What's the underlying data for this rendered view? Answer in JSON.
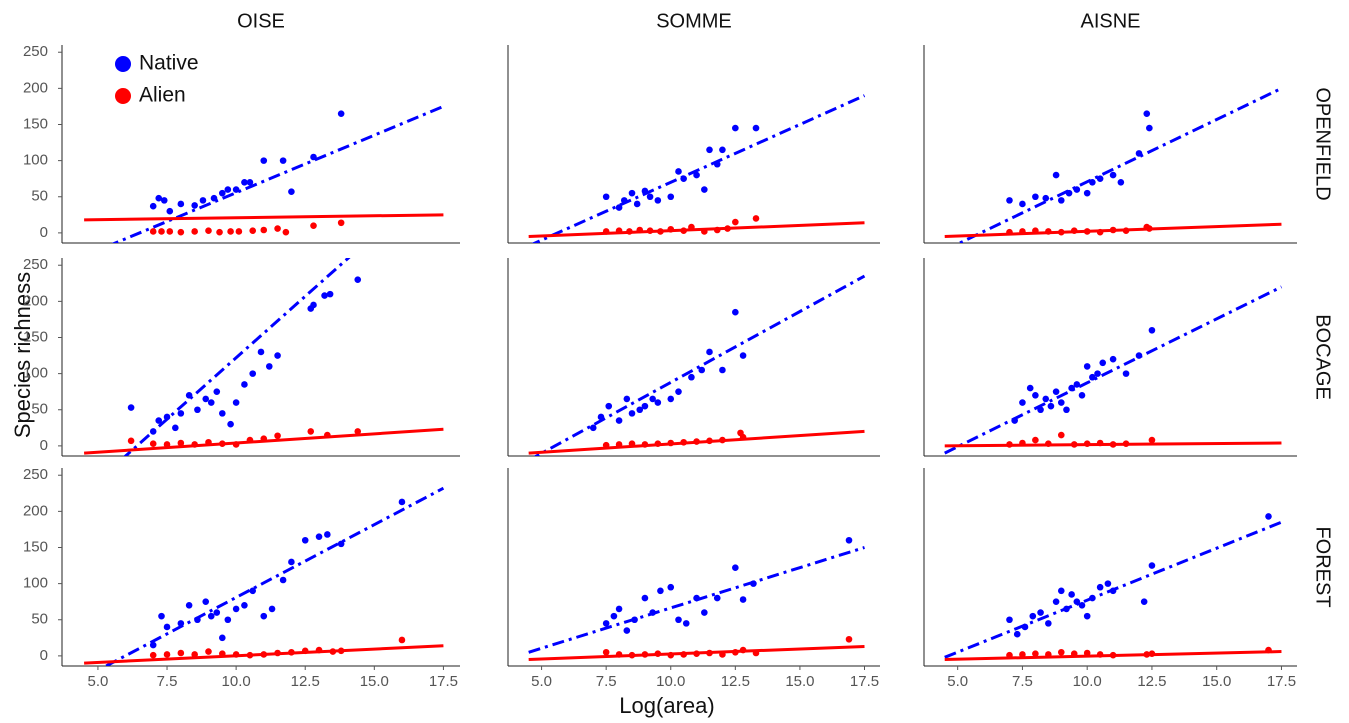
{
  "figure": {
    "x_label": "Log(area)",
    "y_label": "Species richness",
    "columns": [
      "OISE",
      "SOMME",
      "AISNE"
    ],
    "rows": [
      "OPENFIELD",
      "BOCAGE",
      "FOREST"
    ]
  },
  "chart_data": [
    {
      "type": "scatter",
      "xlim": [
        3.7,
        18.1
      ],
      "ylim": [
        -14,
        260
      ],
      "yticks": [
        0,
        50,
        100,
        150,
        200,
        250
      ],
      "series": [
        {
          "name": "Native",
          "color": "#0000ff",
          "line_style": "dashdot",
          "x": [
            7,
            7.2,
            7.4,
            7.6,
            8,
            8.5,
            8.8,
            9.2,
            9.5,
            9.7,
            10,
            10.3,
            10.5,
            11,
            11.7,
            12,
            12.8,
            13.8
          ],
          "values": [
            37,
            48,
            45,
            30,
            40,
            38,
            45,
            48,
            55,
            60,
            60,
            70,
            70,
            100,
            100,
            57,
            105,
            165
          ],
          "trend": {
            "x": [
              4.5,
              17.5
            ],
            "y": [
              -32,
              175
            ]
          }
        },
        {
          "name": "Alien",
          "color": "#ff0000",
          "line_style": "solid",
          "x": [
            7,
            7.3,
            7.6,
            8,
            8.5,
            9,
            9.4,
            9.8,
            10.1,
            10.6,
            11,
            11.5,
            11.8,
            12.8,
            13.8
          ],
          "values": [
            2,
            2,
            2,
            1,
            2,
            3,
            1,
            2,
            2,
            3,
            4,
            6,
            1,
            10,
            14
          ],
          "trend": {
            "x": [
              4.5,
              17.5
            ],
            "y": [
              18,
              25
            ]
          }
        }
      ]
    },
    {
      "type": "scatter",
      "xlim": [
        3.7,
        18.1
      ],
      "ylim": [
        -14,
        260
      ],
      "series": [
        {
          "color": "#0000ff",
          "line_style": "dashdot",
          "x": [
            7.5,
            8,
            8.2,
            8.5,
            8.7,
            9,
            9.2,
            9.5,
            10,
            10.3,
            10.5,
            11,
            11.3,
            11.5,
            11.8,
            12,
            12.5,
            13.3
          ],
          "values": [
            50,
            35,
            45,
            55,
            40,
            58,
            50,
            45,
            50,
            85,
            75,
            80,
            60,
            115,
            95,
            115,
            145,
            145
          ],
          "trend": {
            "x": [
              4.5,
              17.5
            ],
            "y": [
              -18,
              190
            ]
          }
        },
        {
          "color": "#ff0000",
          "line_style": "solid",
          "x": [
            7.5,
            8,
            8.4,
            8.8,
            9.2,
            9.6,
            10,
            10.5,
            10.8,
            11.3,
            11.8,
            12.2,
            12.5,
            13.3
          ],
          "values": [
            2,
            3,
            2,
            4,
            3,
            2,
            5,
            3,
            8,
            2,
            4,
            6,
            15,
            20
          ],
          "trend": {
            "x": [
              4.5,
              17.5
            ],
            "y": [
              -5,
              14
            ]
          }
        }
      ]
    },
    {
      "type": "scatter",
      "xlim": [
        3.7,
        18.1
      ],
      "ylim": [
        -14,
        260
      ],
      "series": [
        {
          "color": "#0000ff",
          "line_style": "dashdot",
          "x": [
            7,
            7.5,
            8,
            8.4,
            8.8,
            9,
            9.3,
            9.6,
            10,
            10.2,
            10.5,
            11,
            11.3,
            12,
            12.3,
            12.4
          ],
          "values": [
            45,
            40,
            50,
            48,
            80,
            45,
            55,
            60,
            55,
            70,
            75,
            80,
            70,
            110,
            165,
            145
          ],
          "trend": {
            "x": [
              4.5,
              17.5
            ],
            "y": [
              -24,
              200
            ]
          }
        },
        {
          "color": "#ff0000",
          "line_style": "solid",
          "x": [
            7,
            7.5,
            8,
            8.5,
            9,
            9.5,
            10,
            10.5,
            11,
            11.5,
            12.3,
            12.4
          ],
          "values": [
            1,
            2,
            3,
            2,
            1,
            3,
            2,
            1,
            4,
            3,
            8,
            6
          ],
          "trend": {
            "x": [
              4.5,
              17.5
            ],
            "y": [
              -5,
              12
            ]
          }
        }
      ]
    },
    {
      "type": "scatter",
      "xlim": [
        3.7,
        18.1
      ],
      "ylim": [
        -14,
        260
      ],
      "yticks": [
        0,
        50,
        100,
        150,
        200,
        250
      ],
      "series": [
        {
          "color": "#0000ff",
          "line_style": "dashdot",
          "x": [
            6.2,
            7,
            7.2,
            7.5,
            7.8,
            8,
            8.3,
            8.6,
            8.9,
            9.1,
            9.3,
            9.5,
            9.8,
            10,
            10.3,
            10.6,
            10.9,
            11.2,
            11.5,
            12.7,
            12.8,
            13.2,
            13.4,
            14.4
          ],
          "values": [
            53,
            20,
            35,
            40,
            25,
            45,
            70,
            50,
            65,
            60,
            75,
            45,
            30,
            60,
            85,
            100,
            130,
            110,
            125,
            190,
            195,
            208,
            210,
            230
          ],
          "trend": {
            "x": [
              4.5,
              17.5
            ],
            "y": [
              -65,
              377
            ]
          }
        },
        {
          "color": "#ff0000",
          "line_style": "solid",
          "x": [
            6.2,
            7,
            7.5,
            8,
            8.5,
            9,
            9.5,
            10,
            10.5,
            11,
            11.5,
            12.7,
            13.3,
            14.4
          ],
          "values": [
            7,
            3,
            2,
            4,
            2,
            5,
            3,
            2,
            8,
            10,
            14,
            20,
            15,
            20
          ],
          "trend": {
            "x": [
              4.5,
              17.5
            ],
            "y": [
              -10,
              23
            ]
          }
        }
      ]
    },
    {
      "type": "scatter",
      "xlim": [
        3.7,
        18.1
      ],
      "ylim": [
        -14,
        260
      ],
      "series": [
        {
          "color": "#0000ff",
          "line_style": "dashdot",
          "x": [
            7,
            7.3,
            7.6,
            8,
            8.3,
            8.5,
            8.8,
            9,
            9.3,
            9.5,
            10,
            10.3,
            10.8,
            11.2,
            11.5,
            12,
            12.5,
            12.8
          ],
          "values": [
            25,
            40,
            55,
            35,
            65,
            45,
            50,
            55,
            65,
            60,
            65,
            75,
            95,
            105,
            130,
            105,
            185,
            125
          ],
          "trend": {
            "x": [
              4.5,
              17.5
            ],
            "y": [
              -20,
              235
            ]
          }
        },
        {
          "color": "#ff0000",
          "line_style": "solid",
          "x": [
            7.5,
            8,
            8.5,
            9,
            9.5,
            10,
            10.5,
            11,
            11.5,
            12,
            12.7,
            12.8
          ],
          "values": [
            1,
            2,
            3,
            2,
            3,
            4,
            5,
            6,
            7,
            8,
            18,
            12
          ],
          "trend": {
            "x": [
              4.5,
              17.5
            ],
            "y": [
              -10,
              20
            ]
          }
        }
      ]
    },
    {
      "type": "scatter",
      "xlim": [
        3.7,
        18.1
      ],
      "ylim": [
        -14,
        260
      ],
      "series": [
        {
          "color": "#0000ff",
          "line_style": "dashdot",
          "x": [
            7.2,
            7.5,
            7.8,
            8,
            8.2,
            8.4,
            8.6,
            8.8,
            9,
            9.2,
            9.4,
            9.6,
            9.8,
            10,
            10.2,
            10.4,
            10.6,
            11,
            11.5,
            12,
            12.5
          ],
          "values": [
            35,
            60,
            80,
            70,
            50,
            65,
            55,
            75,
            60,
            50,
            80,
            85,
            70,
            110,
            95,
            100,
            115,
            120,
            100,
            125,
            160
          ],
          "trend": {
            "x": [
              4.5,
              17.5
            ],
            "y": [
              -10,
              220
            ]
          }
        },
        {
          "color": "#ff0000",
          "line_style": "solid",
          "x": [
            7,
            7.5,
            8,
            8.5,
            9,
            9.5,
            10,
            10.5,
            11,
            11.5,
            12.5
          ],
          "values": [
            2,
            4,
            8,
            3,
            15,
            2,
            3,
            4,
            2,
            3,
            8
          ],
          "trend": {
            "x": [
              4.5,
              17.5
            ],
            "y": [
              0,
              4
            ]
          }
        }
      ]
    },
    {
      "type": "scatter",
      "xlim": [
        3.7,
        18.1
      ],
      "ylim": [
        -14,
        260
      ],
      "yticks": [
        0,
        50,
        100,
        150,
        200,
        250
      ],
      "xticks": [
        {
          "value": 5,
          "label": "5.0"
        },
        7.5,
        {
          "value": 10,
          "label": "10.0"
        },
        12.5,
        {
          "value": 15,
          "label": "15.0"
        },
        17.5
      ],
      "series": [
        {
          "color": "#0000ff",
          "line_style": "dashdot",
          "x": [
            7,
            7.3,
            7.5,
            8,
            8.3,
            8.6,
            8.9,
            9.1,
            9.3,
            9.5,
            9.7,
            10,
            10.3,
            10.6,
            11,
            11.3,
            11.7,
            12,
            12.5,
            13,
            13.3,
            13.8,
            16
          ],
          "values": [
            15,
            55,
            40,
            45,
            70,
            50,
            75,
            55,
            60,
            25,
            50,
            65,
            70,
            90,
            55,
            65,
            105,
            130,
            160,
            165,
            168,
            155,
            213
          ],
          "trend": {
            "x": [
              4.5,
              17.5
            ],
            "y": [
              -30,
              232
            ]
          }
        },
        {
          "color": "#ff0000",
          "line_style": "solid",
          "x": [
            7,
            7.5,
            8,
            8.5,
            9,
            9.5,
            10,
            10.5,
            11,
            11.5,
            12,
            12.5,
            13,
            13.5,
            13.8,
            16
          ],
          "values": [
            1,
            2,
            4,
            2,
            6,
            3,
            2,
            1,
            2,
            4,
            5,
            7,
            8,
            6,
            7,
            22
          ],
          "trend": {
            "x": [
              4.5,
              17.5
            ],
            "y": [
              -10,
              14
            ]
          }
        }
      ]
    },
    {
      "type": "scatter",
      "xlim": [
        3.7,
        18.1
      ],
      "ylim": [
        -14,
        260
      ],
      "xticks": [
        {
          "value": 5,
          "label": "5.0"
        },
        7.5,
        {
          "value": 10,
          "label": "10.0"
        },
        12.5,
        {
          "value": 15,
          "label": "15.0"
        },
        17.5
      ],
      "series": [
        {
          "color": "#0000ff",
          "line_style": "dashdot",
          "x": [
            7.5,
            7.8,
            8,
            8.3,
            8.6,
            9,
            9.3,
            9.6,
            10,
            10.3,
            10.6,
            11,
            11.3,
            11.8,
            12.5,
            12.8,
            13.2,
            16.9
          ],
          "values": [
            45,
            55,
            65,
            35,
            50,
            80,
            60,
            90,
            95,
            50,
            45,
            80,
            60,
            80,
            122,
            78,
            100,
            160
          ],
          "trend": {
            "x": [
              4.5,
              17.5
            ],
            "y": [
              5,
              150
            ]
          }
        },
        {
          "color": "#ff0000",
          "line_style": "solid",
          "x": [
            7.5,
            8,
            8.5,
            9,
            9.5,
            10,
            10.5,
            11,
            11.5,
            12,
            12.5,
            12.8,
            13.3,
            16.9
          ],
          "values": [
            5,
            2,
            1,
            2,
            3,
            1,
            2,
            3,
            4,
            2,
            5,
            8,
            4,
            23
          ],
          "trend": {
            "x": [
              4.5,
              17.5
            ],
            "y": [
              -5,
              13
            ]
          }
        }
      ]
    },
    {
      "type": "scatter",
      "xlim": [
        3.7,
        18.1
      ],
      "ylim": [
        -14,
        260
      ],
      "xticks": [
        {
          "value": 5,
          "label": "5.0"
        },
        7.5,
        {
          "value": 10,
          "label": "10.0"
        },
        12.5,
        {
          "value": 15,
          "label": "15.0"
        },
        17.5
      ],
      "series": [
        {
          "color": "#0000ff",
          "line_style": "dashdot",
          "x": [
            7,
            7.3,
            7.6,
            7.9,
            8.2,
            8.5,
            8.8,
            9,
            9.2,
            9.4,
            9.6,
            9.8,
            10,
            10.2,
            10.5,
            10.8,
            11,
            12.2,
            12.5,
            17
          ],
          "values": [
            50,
            30,
            40,
            55,
            60,
            45,
            75,
            90,
            65,
            85,
            75,
            70,
            55,
            80,
            95,
            100,
            90,
            75,
            125,
            193
          ],
          "trend": {
            "x": [
              4.5,
              17.5
            ],
            "y": [
              -2,
              185
            ]
          }
        },
        {
          "color": "#ff0000",
          "line_style": "solid",
          "x": [
            7,
            7.5,
            8,
            8.5,
            9,
            9.5,
            10,
            10.5,
            11,
            12.3,
            12.5,
            17
          ],
          "values": [
            1,
            2,
            3,
            2,
            5,
            3,
            4,
            2,
            1,
            2,
            3,
            8
          ],
          "trend": {
            "x": [
              4.5,
              17.5
            ],
            "y": [
              -5,
              6
            ]
          }
        }
      ]
    }
  ]
}
